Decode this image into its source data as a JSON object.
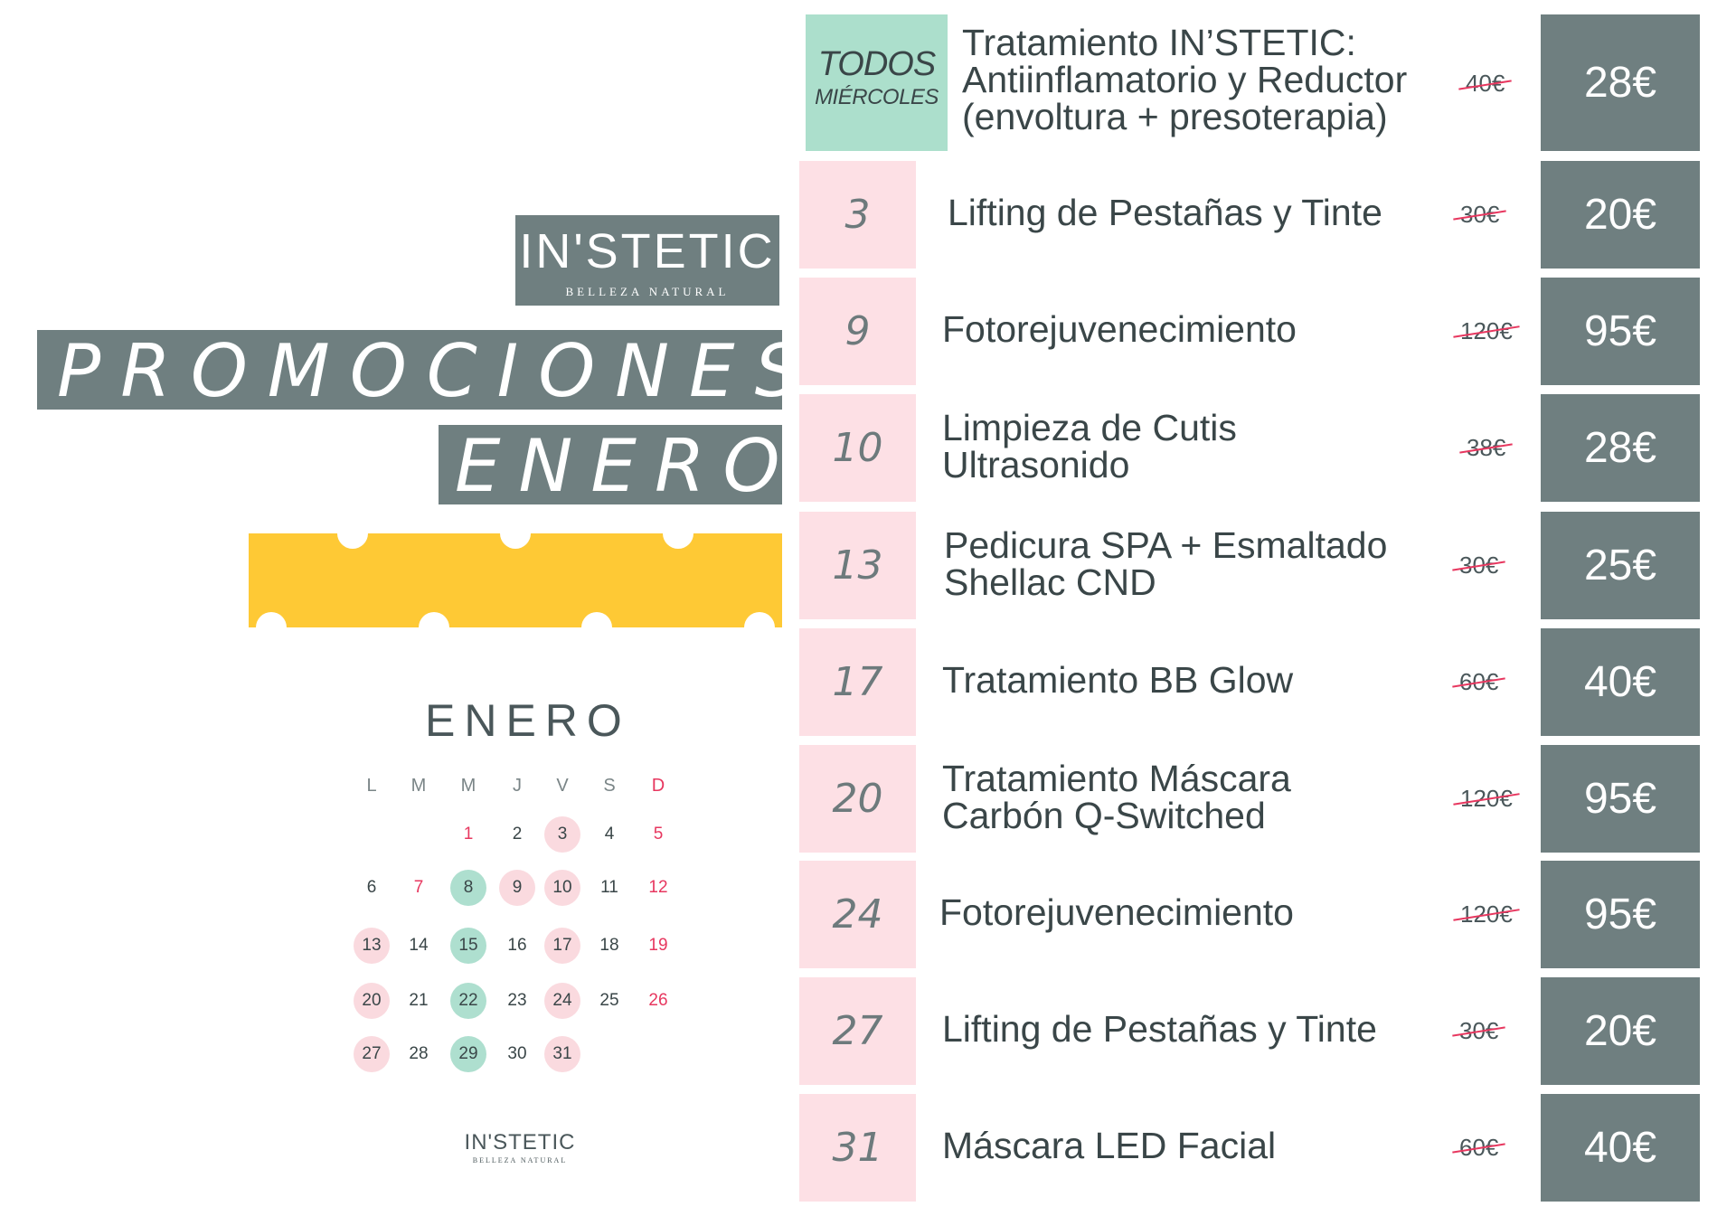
{
  "brand": {
    "name": "IN'STETIC",
    "tagline": "BELLEZA NATURAL"
  },
  "banner": {
    "line1": "PROMOCIONES",
    "line2": "ENERO"
  },
  "calendar": {
    "title": "ENERO",
    "weekdays": [
      "L",
      "M",
      "M",
      "J",
      "V",
      "S",
      "D"
    ],
    "rows": [
      [
        "",
        "",
        "1",
        "2",
        "3",
        "4",
        "5"
      ],
      [
        "6",
        "7",
        "8",
        "9",
        "10",
        "11",
        "12"
      ],
      [
        "13",
        "14",
        "15",
        "16",
        "17",
        "18",
        "19"
      ],
      [
        "20",
        "21",
        "22",
        "23",
        "24",
        "25",
        "26"
      ],
      [
        "27",
        "28",
        "29",
        "30",
        "31",
        "",
        ""
      ]
    ],
    "red_days": [
      "1",
      "5",
      "7",
      "12",
      "19",
      "26"
    ],
    "pink_days": [
      "3",
      "9",
      "10",
      "13",
      "17",
      "20",
      "24",
      "27",
      "31"
    ],
    "green_days": [
      "8",
      "15",
      "22",
      "29"
    ]
  },
  "footer_logo": {
    "name": "IN'STETIC",
    "tagline": "BELLEZA NATURAL"
  },
  "weekly": {
    "line1": "TODOS",
    "line2": "MIÉRCOLES",
    "service": [
      "Tratamiento IN’STETIC:",
      "Antiinflamatorio y Reductor",
      "(envoltura + presoterapia)"
    ],
    "old_price": "40€",
    "price": "28€"
  },
  "promotions": [
    {
      "day": "3",
      "service": [
        "Lifting de Pestañas y Tinte"
      ],
      "old_price": "30€",
      "price": "20€"
    },
    {
      "day": "9",
      "service": [
        "Fotorejuvenecimiento"
      ],
      "old_price": "120€",
      "price": "95€"
    },
    {
      "day": "10",
      "service": [
        "Limpieza de Cutis",
        "Ultrasonido"
      ],
      "old_price": "38€",
      "price": "28€"
    },
    {
      "day": "13",
      "service": [
        "Pedicura SPA + Esmaltado",
        "Shellac CND"
      ],
      "old_price": "30€",
      "price": "25€"
    },
    {
      "day": "17",
      "service": [
        "Tratamiento BB Glow"
      ],
      "old_price": "60€",
      "price": "40€"
    },
    {
      "day": "20",
      "service": [
        "Tratamiento Máscara",
        "Carbón  Q-Switched"
      ],
      "old_price": "120€",
      "price": "95€"
    },
    {
      "day": "24",
      "service": [
        "Fotorejuvenecimiento"
      ],
      "old_price": "120€",
      "price": "95€"
    },
    {
      "day": "27",
      "service": [
        "Lifting de Pestañas y Tinte"
      ],
      "old_price": "30€",
      "price": "20€"
    },
    {
      "day": "31",
      "service": [
        "Máscara LED Facial"
      ],
      "old_price": "60€",
      "price": "40€"
    }
  ],
  "colors": {
    "slate": "#6f7f80",
    "mint": "#acdfcc",
    "pink": "#fde0e5",
    "yellow": "#fec935",
    "strike_red": "#e7375f"
  }
}
